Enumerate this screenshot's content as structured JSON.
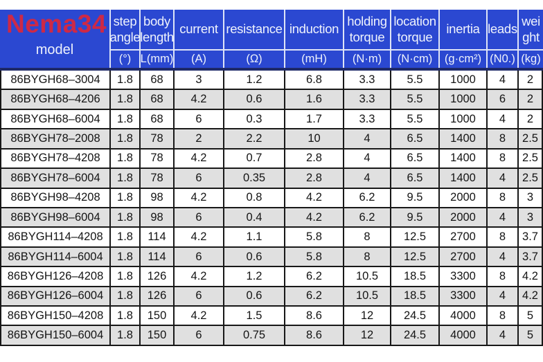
{
  "brand": "Nema34",
  "colors": {
    "header_blue": "#2b48d1",
    "header_line_navy": "#1e2968",
    "brand_red": "#ce2946",
    "row_alt_gray": "#e0e0e0"
  },
  "table": {
    "model_header": "model",
    "columns": [
      {
        "name": "step angle",
        "lines": [
          "step",
          "angle"
        ],
        "unit": "(°)"
      },
      {
        "name": "body length",
        "lines": [
          "body",
          "length"
        ],
        "unit": "L(mm)"
      },
      {
        "name": "current",
        "lines": [
          "current"
        ],
        "unit": "(A)"
      },
      {
        "name": "resistance",
        "lines": [
          "resistance"
        ],
        "unit": "(Ω)"
      },
      {
        "name": "induction",
        "lines": [
          "induction"
        ],
        "unit": "(mH)"
      },
      {
        "name": "holding torque",
        "lines": [
          "holding",
          "torque"
        ],
        "unit": "(N·m)"
      },
      {
        "name": "location torque",
        "lines": [
          "location",
          "torque"
        ],
        "unit": "(N·cm)"
      },
      {
        "name": "inertia",
        "lines": [
          "inertia"
        ],
        "unit": "(g·cm²)"
      },
      {
        "name": "leads",
        "lines": [
          "leads"
        ],
        "unit": "(N0.)"
      },
      {
        "name": "weight",
        "lines": [
          "wei",
          "ght"
        ],
        "unit": "(kg)"
      }
    ],
    "rows": [
      {
        "model": "86BYGH68–3004",
        "values": [
          "1.8",
          "68",
          "3",
          "1.2",
          "6.8",
          "3.3",
          "5.5",
          "1000",
          "4",
          "2"
        ]
      },
      {
        "model": "86BYGH68–4206",
        "values": [
          "1.8",
          "68",
          "4.2",
          "0.6",
          "1.6",
          "3.3",
          "5.5",
          "1000",
          "6",
          "2"
        ]
      },
      {
        "model": "86BYGH68–6004",
        "values": [
          "1.8",
          "68",
          "6",
          "0.3",
          "1.7",
          "3.3",
          "5.5",
          "1000",
          "4",
          "2"
        ]
      },
      {
        "model": "86BYGH78–2008",
        "values": [
          "1.8",
          "78",
          "2",
          "2.2",
          "10",
          "4",
          "6.5",
          "1400",
          "8",
          "2.5"
        ]
      },
      {
        "model": "86BYGH78–4208",
        "values": [
          "1.8",
          "78",
          "4.2",
          "0.7",
          "2.8",
          "4",
          "6.5",
          "1400",
          "8",
          "2.5"
        ]
      },
      {
        "model": "86BYGH78–6004",
        "values": [
          "1.8",
          "78",
          "6",
          "0.35",
          "2.8",
          "4",
          "6.5",
          "1400",
          "4",
          "2.5"
        ]
      },
      {
        "model": "86BYGH98–4208",
        "values": [
          "1.8",
          "98",
          "4.2",
          "0.8",
          "4.2",
          "6.2",
          "9.5",
          "2000",
          "8",
          "3"
        ]
      },
      {
        "model": "86BYGH98–6004",
        "values": [
          "1.8",
          "98",
          "6",
          "0.4",
          "4.2",
          "6.2",
          "9.5",
          "2000",
          "4",
          "3"
        ]
      },
      {
        "model": "86BYGH114–4208",
        "values": [
          "1.8",
          "114",
          "4.2",
          "1.1",
          "5.8",
          "8",
          "12.5",
          "2700",
          "8",
          "3.7"
        ]
      },
      {
        "model": "86BYGH114–6004",
        "values": [
          "1.8",
          "114",
          "6",
          "0.6",
          "5.8",
          "8",
          "12.5",
          "2700",
          "4",
          "3.7"
        ]
      },
      {
        "model": "86BYGH126–4208",
        "values": [
          "1.8",
          "126",
          "4.2",
          "1.2",
          "6.2",
          "10.5",
          "18.5",
          "3300",
          "8",
          "4.2"
        ]
      },
      {
        "model": "86BYGH126–6004",
        "values": [
          "1.8",
          "126",
          "6",
          "0.6",
          "6.2",
          "10.5",
          "18.5",
          "3300",
          "4",
          "4.2"
        ]
      },
      {
        "model": "86BYGH150–4208",
        "values": [
          "1.8",
          "150",
          "4.2",
          "1.5",
          "8.6",
          "12",
          "24.5",
          "4000",
          "8",
          "5"
        ]
      },
      {
        "model": "86BYGH150–6004",
        "values": [
          "1.8",
          "150",
          "6",
          "0.75",
          "8.6",
          "12",
          "24.5",
          "4000",
          "4",
          "5"
        ]
      }
    ]
  },
  "chart_data": {
    "type": "table",
    "title": "Nema34 stepper motor specifications",
    "columns": [
      "model",
      "step angle (°)",
      "body length L(mm)",
      "current (A)",
      "resistance (Ω)",
      "induction (mH)",
      "holding torque (N·m)",
      "location torque (N·cm)",
      "inertia (g·cm²)",
      "leads (N0.)",
      "weight (kg)"
    ]
  }
}
